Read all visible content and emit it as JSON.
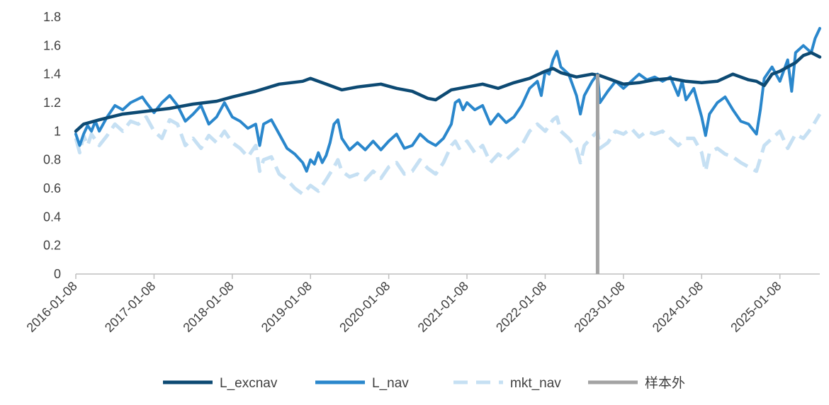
{
  "chart_data": {
    "type": "line",
    "title": "",
    "xlabel": "",
    "ylabel": "",
    "ylim": [
      0,
      1.8
    ],
    "yticks": [
      0,
      0.2,
      0.4,
      0.6,
      0.8,
      1,
      1.2,
      1.4,
      1.6,
      1.8
    ],
    "ytick_labels": [
      "0",
      "0.2",
      "0.4",
      "0.6",
      "0.8",
      "1",
      "1.2",
      "1.4",
      "1.6",
      "1.8"
    ],
    "xlim": [
      2016.0,
      2025.51
    ],
    "xticks": [
      2016.0,
      2017.0,
      2018.0,
      2019.0,
      2020.0,
      2021.0,
      2022.0,
      2023.0,
      2024.0,
      2025.0
    ],
    "xtick_labels": [
      "2016-01-08",
      "2017-01-08",
      "2018-01-08",
      "2019-01-08",
      "2020-01-08",
      "2021-01-08",
      "2022-01-08",
      "2023-01-08",
      "2024-01-08",
      "2025-01-08"
    ],
    "grid": false,
    "legend_position": "bottom",
    "out_of_sample_start": 2022.67,
    "series": [
      {
        "name": "L_excnav",
        "color": "#0d4a73",
        "style": "solid",
        "points": [
          [
            2016.0,
            1.0
          ],
          [
            2016.1,
            1.05
          ],
          [
            2016.3,
            1.08
          ],
          [
            2016.6,
            1.12
          ],
          [
            2016.9,
            1.14
          ],
          [
            2017.2,
            1.16
          ],
          [
            2017.5,
            1.19
          ],
          [
            2017.8,
            1.21
          ],
          [
            2018.0,
            1.24
          ],
          [
            2018.3,
            1.28
          ],
          [
            2018.6,
            1.33
          ],
          [
            2018.9,
            1.35
          ],
          [
            2019.0,
            1.37
          ],
          [
            2019.2,
            1.33
          ],
          [
            2019.4,
            1.29
          ],
          [
            2019.6,
            1.31
          ],
          [
            2019.9,
            1.33
          ],
          [
            2020.1,
            1.3
          ],
          [
            2020.3,
            1.28
          ],
          [
            2020.5,
            1.23
          ],
          [
            2020.6,
            1.22
          ],
          [
            2020.8,
            1.29
          ],
          [
            2021.0,
            1.31
          ],
          [
            2021.2,
            1.33
          ],
          [
            2021.4,
            1.3
          ],
          [
            2021.6,
            1.34
          ],
          [
            2021.8,
            1.37
          ],
          [
            2022.0,
            1.42
          ],
          [
            2022.1,
            1.44
          ],
          [
            2022.2,
            1.41
          ],
          [
            2022.4,
            1.38
          ],
          [
            2022.6,
            1.4
          ],
          [
            2022.7,
            1.39
          ],
          [
            2022.9,
            1.35
          ],
          [
            2023.0,
            1.33
          ],
          [
            2023.2,
            1.34
          ],
          [
            2023.4,
            1.36
          ],
          [
            2023.6,
            1.37
          ],
          [
            2023.8,
            1.35
          ],
          [
            2024.0,
            1.34
          ],
          [
            2024.2,
            1.35
          ],
          [
            2024.4,
            1.4
          ],
          [
            2024.6,
            1.36
          ],
          [
            2024.7,
            1.35
          ],
          [
            2024.8,
            1.32
          ],
          [
            2024.9,
            1.4
          ],
          [
            2025.0,
            1.42
          ],
          [
            2025.2,
            1.48
          ],
          [
            2025.3,
            1.53
          ],
          [
            2025.4,
            1.55
          ],
          [
            2025.51,
            1.52
          ]
        ]
      },
      {
        "name": "L_nav",
        "color": "#2a87cc",
        "style": "solid",
        "points": [
          [
            2016.0,
            0.98
          ],
          [
            2016.05,
            0.9
          ],
          [
            2016.1,
            0.98
          ],
          [
            2016.15,
            1.04
          ],
          [
            2016.2,
            1.0
          ],
          [
            2016.25,
            1.07
          ],
          [
            2016.3,
            1.0
          ],
          [
            2016.4,
            1.1
          ],
          [
            2016.5,
            1.18
          ],
          [
            2016.6,
            1.15
          ],
          [
            2016.7,
            1.2
          ],
          [
            2016.85,
            1.24
          ],
          [
            2016.9,
            1.2
          ],
          [
            2017.0,
            1.13
          ],
          [
            2017.1,
            1.2
          ],
          [
            2017.2,
            1.25
          ],
          [
            2017.3,
            1.18
          ],
          [
            2017.4,
            1.07
          ],
          [
            2017.5,
            1.12
          ],
          [
            2017.6,
            1.18
          ],
          [
            2017.7,
            1.05
          ],
          [
            2017.8,
            1.1
          ],
          [
            2017.9,
            1.2
          ],
          [
            2018.0,
            1.1
          ],
          [
            2018.1,
            1.07
          ],
          [
            2018.2,
            1.02
          ],
          [
            2018.3,
            1.05
          ],
          [
            2018.35,
            0.9
          ],
          [
            2018.4,
            1.05
          ],
          [
            2018.5,
            1.08
          ],
          [
            2018.6,
            0.98
          ],
          [
            2018.7,
            0.88
          ],
          [
            2018.8,
            0.84
          ],
          [
            2018.9,
            0.78
          ],
          [
            2018.95,
            0.72
          ],
          [
            2019.0,
            0.8
          ],
          [
            2019.05,
            0.77
          ],
          [
            2019.1,
            0.85
          ],
          [
            2019.15,
            0.78
          ],
          [
            2019.2,
            0.83
          ],
          [
            2019.25,
            0.92
          ],
          [
            2019.3,
            1.05
          ],
          [
            2019.35,
            1.08
          ],
          [
            2019.4,
            0.95
          ],
          [
            2019.5,
            0.87
          ],
          [
            2019.6,
            0.92
          ],
          [
            2019.7,
            0.87
          ],
          [
            2019.8,
            0.93
          ],
          [
            2019.9,
            0.87
          ],
          [
            2020.0,
            0.93
          ],
          [
            2020.1,
            0.98
          ],
          [
            2020.2,
            0.88
          ],
          [
            2020.3,
            0.9
          ],
          [
            2020.4,
            0.98
          ],
          [
            2020.5,
            0.93
          ],
          [
            2020.6,
            0.9
          ],
          [
            2020.7,
            0.95
          ],
          [
            2020.8,
            1.05
          ],
          [
            2020.85,
            1.2
          ],
          [
            2020.9,
            1.22
          ],
          [
            2020.95,
            1.15
          ],
          [
            2021.0,
            1.2
          ],
          [
            2021.1,
            1.15
          ],
          [
            2021.2,
            1.18
          ],
          [
            2021.3,
            1.05
          ],
          [
            2021.4,
            1.12
          ],
          [
            2021.5,
            1.06
          ],
          [
            2021.6,
            1.1
          ],
          [
            2021.7,
            1.18
          ],
          [
            2021.8,
            1.3
          ],
          [
            2021.9,
            1.35
          ],
          [
            2021.95,
            1.25
          ],
          [
            2022.0,
            1.42
          ],
          [
            2022.05,
            1.4
          ],
          [
            2022.1,
            1.5
          ],
          [
            2022.15,
            1.56
          ],
          [
            2022.2,
            1.45
          ],
          [
            2022.3,
            1.4
          ],
          [
            2022.4,
            1.25
          ],
          [
            2022.45,
            1.12
          ],
          [
            2022.5,
            1.25
          ],
          [
            2022.6,
            1.35
          ],
          [
            2022.67,
            1.4
          ],
          [
            2022.7,
            1.2
          ],
          [
            2022.8,
            1.28
          ],
          [
            2022.9,
            1.35
          ],
          [
            2023.0,
            1.3
          ],
          [
            2023.1,
            1.35
          ],
          [
            2023.2,
            1.4
          ],
          [
            2023.3,
            1.36
          ],
          [
            2023.4,
            1.38
          ],
          [
            2023.5,
            1.35
          ],
          [
            2023.6,
            1.38
          ],
          [
            2023.7,
            1.25
          ],
          [
            2023.75,
            1.35
          ],
          [
            2023.8,
            1.22
          ],
          [
            2023.9,
            1.3
          ],
          [
            2024.0,
            1.1
          ],
          [
            2024.05,
            0.97
          ],
          [
            2024.1,
            1.12
          ],
          [
            2024.2,
            1.2
          ],
          [
            2024.3,
            1.24
          ],
          [
            2024.4,
            1.15
          ],
          [
            2024.5,
            1.07
          ],
          [
            2024.6,
            1.05
          ],
          [
            2024.7,
            0.98
          ],
          [
            2024.75,
            1.15
          ],
          [
            2024.8,
            1.37
          ],
          [
            2024.9,
            1.45
          ],
          [
            2025.0,
            1.35
          ],
          [
            2025.1,
            1.5
          ],
          [
            2025.15,
            1.28
          ],
          [
            2025.2,
            1.55
          ],
          [
            2025.3,
            1.6
          ],
          [
            2025.4,
            1.55
          ],
          [
            2025.45,
            1.65
          ],
          [
            2025.51,
            1.72
          ]
        ]
      },
      {
        "name": "mkt_nav",
        "color": "#c6e0f3",
        "style": "dashed",
        "points": [
          [
            2016.0,
            0.95
          ],
          [
            2016.05,
            0.85
          ],
          [
            2016.1,
            0.97
          ],
          [
            2016.15,
            0.9
          ],
          [
            2016.2,
            0.98
          ],
          [
            2016.3,
            0.9
          ],
          [
            2016.4,
            0.97
          ],
          [
            2016.5,
            1.05
          ],
          [
            2016.6,
            1.0
          ],
          [
            2016.7,
            1.07
          ],
          [
            2016.8,
            1.05
          ],
          [
            2016.9,
            1.1
          ],
          [
            2017.0,
            1.0
          ],
          [
            2017.1,
            0.95
          ],
          [
            2017.2,
            1.08
          ],
          [
            2017.3,
            1.05
          ],
          [
            2017.4,
            0.9
          ],
          [
            2017.5,
            0.95
          ],
          [
            2017.6,
            0.88
          ],
          [
            2017.7,
            0.97
          ],
          [
            2017.8,
            0.92
          ],
          [
            2017.9,
            1.0
          ],
          [
            2018.0,
            0.92
          ],
          [
            2018.1,
            0.88
          ],
          [
            2018.2,
            0.82
          ],
          [
            2018.3,
            0.9
          ],
          [
            2018.35,
            0.72
          ],
          [
            2018.4,
            0.8
          ],
          [
            2018.5,
            0.82
          ],
          [
            2018.6,
            0.7
          ],
          [
            2018.7,
            0.66
          ],
          [
            2018.8,
            0.6
          ],
          [
            2018.9,
            0.56
          ],
          [
            2019.0,
            0.62
          ],
          [
            2019.1,
            0.58
          ],
          [
            2019.2,
            0.66
          ],
          [
            2019.3,
            0.75
          ],
          [
            2019.35,
            0.8
          ],
          [
            2019.4,
            0.72
          ],
          [
            2019.5,
            0.68
          ],
          [
            2019.6,
            0.7
          ],
          [
            2019.7,
            0.66
          ],
          [
            2019.8,
            0.72
          ],
          [
            2019.9,
            0.67
          ],
          [
            2020.0,
            0.75
          ],
          [
            2020.1,
            0.78
          ],
          [
            2020.2,
            0.7
          ],
          [
            2020.3,
            0.72
          ],
          [
            2020.4,
            0.8
          ],
          [
            2020.5,
            0.74
          ],
          [
            2020.6,
            0.7
          ],
          [
            2020.7,
            0.78
          ],
          [
            2020.8,
            0.9
          ],
          [
            2020.85,
            0.93
          ],
          [
            2020.9,
            0.88
          ],
          [
            2021.0,
            0.93
          ],
          [
            2021.1,
            0.85
          ],
          [
            2021.2,
            0.9
          ],
          [
            2021.3,
            0.78
          ],
          [
            2021.4,
            0.84
          ],
          [
            2021.5,
            0.8
          ],
          [
            2021.6,
            0.85
          ],
          [
            2021.7,
            0.9
          ],
          [
            2021.8,
            1.0
          ],
          [
            2021.9,
            1.05
          ],
          [
            2022.0,
            1.0
          ],
          [
            2022.1,
            1.08
          ],
          [
            2022.15,
            1.1
          ],
          [
            2022.2,
            1.0
          ],
          [
            2022.3,
            0.95
          ],
          [
            2022.4,
            0.88
          ],
          [
            2022.45,
            0.78
          ],
          [
            2022.5,
            0.9
          ],
          [
            2022.6,
            0.96
          ],
          [
            2022.67,
            1.0
          ],
          [
            2022.7,
            0.88
          ],
          [
            2022.8,
            0.92
          ],
          [
            2022.9,
            1.0
          ],
          [
            2023.0,
            0.98
          ],
          [
            2023.1,
            1.02
          ],
          [
            2023.2,
            0.96
          ],
          [
            2023.3,
            1.0
          ],
          [
            2023.4,
            0.98
          ],
          [
            2023.5,
            1.0
          ],
          [
            2023.6,
            0.95
          ],
          [
            2023.7,
            0.9
          ],
          [
            2023.8,
            0.95
          ],
          [
            2023.9,
            0.95
          ],
          [
            2024.0,
            0.85
          ],
          [
            2024.05,
            0.72
          ],
          [
            2024.1,
            0.85
          ],
          [
            2024.2,
            0.88
          ],
          [
            2024.3,
            0.84
          ],
          [
            2024.4,
            0.82
          ],
          [
            2024.5,
            0.78
          ],
          [
            2024.6,
            0.75
          ],
          [
            2024.7,
            0.72
          ],
          [
            2024.8,
            0.9
          ],
          [
            2024.9,
            0.95
          ],
          [
            2025.0,
            1.0
          ],
          [
            2025.1,
            0.88
          ],
          [
            2025.2,
            0.98
          ],
          [
            2025.3,
            0.95
          ],
          [
            2025.4,
            1.02
          ],
          [
            2025.51,
            1.12
          ]
        ]
      },
      {
        "name": "样本外",
        "color": "#a3a3a3",
        "style": "vertical",
        "points": [
          [
            2022.67,
            0
          ],
          [
            2022.67,
            1.4
          ]
        ]
      }
    ]
  }
}
